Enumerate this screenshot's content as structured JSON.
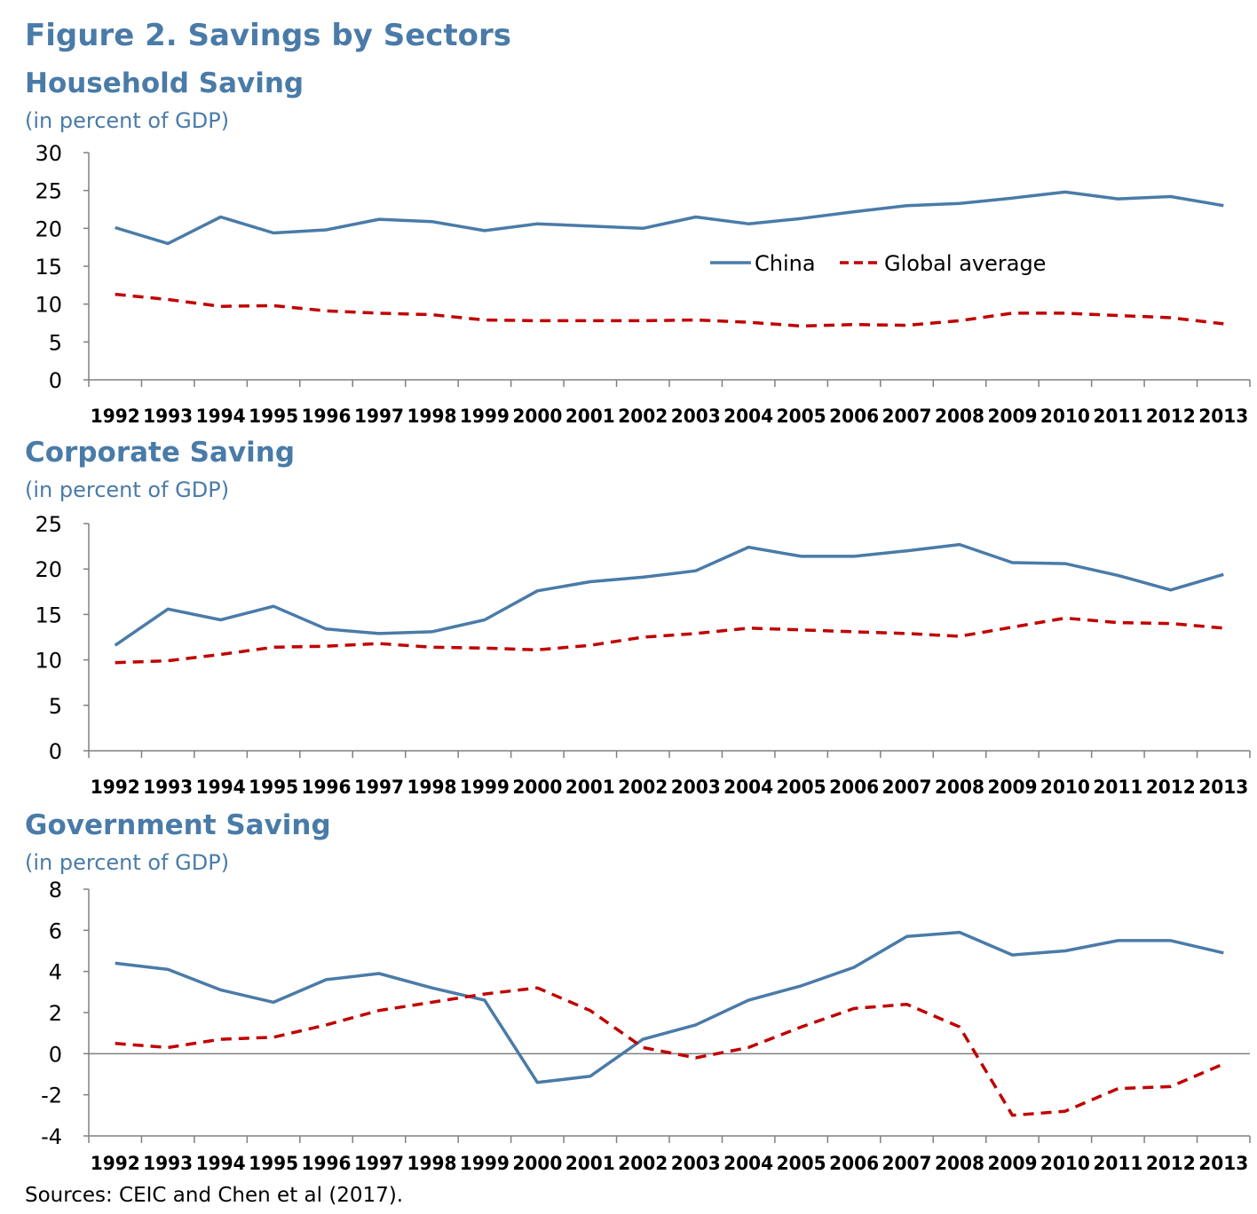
{
  "figure": {
    "title": "Figure 2. Savings by Sectors",
    "source": "Sources: CEIC and Chen et al (2017)."
  },
  "colors": {
    "china": "#4a7ba8",
    "global": "#c00000",
    "axis": "#808080",
    "title": "#4a7ba8"
  },
  "legend": {
    "china": "China",
    "global": "Global average",
    "placement": "inside, upper-right of first panel"
  },
  "chart_data": [
    {
      "type": "line",
      "title": "Household Saving",
      "subtitle": "(in percent of GDP)",
      "xlabel": "",
      "ylabel": "",
      "x": [
        "1992",
        "1993",
        "1994",
        "1995",
        "1996",
        "1997",
        "1998",
        "1999",
        "2000",
        "2001",
        "2002",
        "2003",
        "2004",
        "2005",
        "2006",
        "2007",
        "2008",
        "2009",
        "2010",
        "2011",
        "2012",
        "2013"
      ],
      "ylim": [
        0,
        30
      ],
      "yticks": [
        "0",
        "5",
        "10",
        "15",
        "20",
        "25",
        "30"
      ],
      "grid": false,
      "series": [
        {
          "name": "China",
          "style": "solid",
          "values": [
            20.1,
            18.0,
            21.5,
            19.4,
            19.8,
            21.2,
            20.9,
            19.7,
            20.6,
            20.3,
            20.0,
            21.5,
            20.6,
            21.3,
            22.2,
            23.0,
            23.3,
            24.0,
            24.8,
            23.9,
            24.2,
            23.0
          ]
        },
        {
          "name": "Global average",
          "style": "dashed",
          "values": [
            11.3,
            10.6,
            9.7,
            9.8,
            9.1,
            8.8,
            8.6,
            7.9,
            7.8,
            7.8,
            7.8,
            7.9,
            7.6,
            7.1,
            7.3,
            7.2,
            7.8,
            8.8,
            8.8,
            8.5,
            8.2,
            7.4
          ]
        }
      ]
    },
    {
      "type": "line",
      "title": "Corporate Saving",
      "subtitle": "(in percent of GDP)",
      "xlabel": "",
      "ylabel": "",
      "x": [
        "1992",
        "1993",
        "1994",
        "1995",
        "1996",
        "1997",
        "1998",
        "1999",
        "2000",
        "2001",
        "2002",
        "2003",
        "2004",
        "2005",
        "2006",
        "2007",
        "2008",
        "2009",
        "2010",
        "2011",
        "2012",
        "2013"
      ],
      "ylim": [
        0,
        25
      ],
      "yticks": [
        "0",
        "5",
        "10",
        "15",
        "20",
        "25"
      ],
      "grid": false,
      "series": [
        {
          "name": "China",
          "style": "solid",
          "values": [
            11.6,
            15.6,
            14.4,
            15.9,
            13.4,
            12.9,
            13.1,
            14.4,
            17.6,
            18.6,
            19.1,
            19.8,
            22.4,
            21.4,
            21.4,
            22.0,
            22.7,
            20.7,
            20.6,
            19.3,
            17.7,
            19.4
          ]
        },
        {
          "name": "Global average",
          "style": "dashed",
          "values": [
            9.7,
            9.9,
            10.6,
            11.4,
            11.5,
            11.8,
            11.4,
            11.3,
            11.1,
            11.6,
            12.5,
            12.9,
            13.5,
            13.3,
            13.1,
            12.9,
            12.6,
            13.6,
            14.6,
            14.1,
            14.0,
            13.5
          ]
        }
      ]
    },
    {
      "type": "line",
      "title": "Government Saving",
      "subtitle": "(in percent of GDP)",
      "xlabel": "",
      "ylabel": "",
      "x": [
        "1992",
        "1993",
        "1994",
        "1995",
        "1996",
        "1997",
        "1998",
        "1999",
        "2000",
        "2001",
        "2002",
        "2003",
        "2004",
        "2005",
        "2006",
        "2007",
        "2008",
        "2009",
        "2010",
        "2011",
        "2012",
        "2013"
      ],
      "ylim": [
        -4,
        8
      ],
      "yticks": [
        "-4",
        "-2",
        "0",
        "2",
        "4",
        "6",
        "8"
      ],
      "zero_line": true,
      "grid": false,
      "series": [
        {
          "name": "China",
          "style": "solid",
          "values": [
            4.4,
            4.1,
            3.1,
            2.5,
            3.6,
            3.9,
            3.2,
            2.6,
            -1.4,
            -1.1,
            0.7,
            1.4,
            2.6,
            3.3,
            4.2,
            5.7,
            5.9,
            4.8,
            5.0,
            5.5,
            5.5,
            4.9
          ]
        },
        {
          "name": "Global average",
          "style": "dashed",
          "values": [
            0.5,
            0.3,
            0.7,
            0.8,
            1.4,
            2.1,
            2.5,
            2.9,
            3.2,
            2.1,
            0.3,
            -0.2,
            0.3,
            1.3,
            2.2,
            2.4,
            1.3,
            -3.0,
            -2.8,
            -1.7,
            -1.6,
            -0.5
          ]
        }
      ]
    }
  ]
}
